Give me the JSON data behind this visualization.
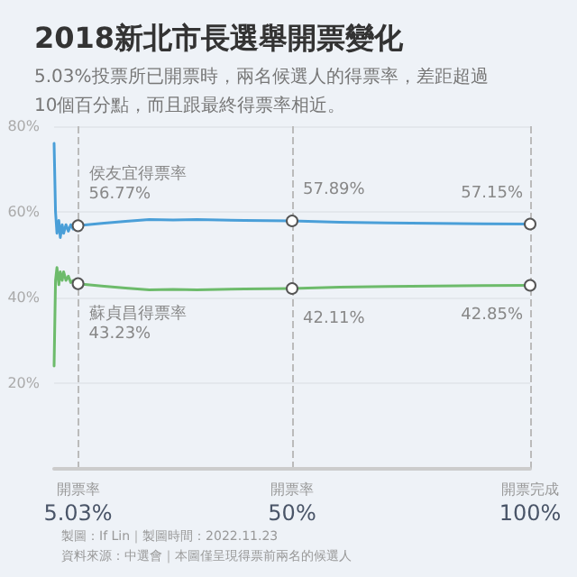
{
  "chart_data": {
    "type": "line",
    "title": "2018新北市長選舉開票變化",
    "subtitle": "5.03%投票所已開票時，兩名候選人的得票率，差距超過\n10個百分點，而且跟最終得票率相近。",
    "xlim": [
      0,
      100
    ],
    "xticks": [
      {
        "value": 5.03,
        "label": "5.03%"
      },
      {
        "value": 50,
        "label": "50%"
      },
      {
        "value": 100,
        "label": "100%"
      }
    ],
    "ylim": [
      0,
      80
    ],
    "yticks": [
      {
        "value": 20,
        "label": "20%"
      },
      {
        "value": 40,
        "label": "40%"
      },
      {
        "value": 60,
        "label": "60%"
      },
      {
        "value": 80,
        "label": "80%"
      }
    ],
    "grid": true,
    "line_style": "solid",
    "series": [
      {
        "name": "侯友宜得票率",
        "color": "#4a9fd8",
        "x": [
          0,
          0.3,
          0.6,
          1,
          1.3,
          1.7,
          2,
          2.5,
          3,
          3.5,
          4,
          5.03,
          7,
          10,
          15,
          20,
          25,
          30,
          40,
          50,
          60,
          70,
          80,
          90,
          100
        ],
        "values": [
          76,
          60,
          55,
          58,
          54,
          57,
          55,
          57,
          55.5,
          57,
          56,
          56.77,
          57,
          57.3,
          57.8,
          58.2,
          58.1,
          58.2,
          58,
          57.89,
          57.6,
          57.4,
          57.3,
          57.2,
          57.15
        ],
        "value_labels": [
          null,
          null,
          null,
          null,
          null,
          null,
          null,
          null,
          null,
          null,
          null,
          "56.77%",
          null,
          null,
          null,
          null,
          null,
          null,
          null,
          "57.89%",
          null,
          null,
          null,
          null,
          "57.15%"
        ]
      },
      {
        "name": "蘇貞昌得票率",
        "color": "#6dbb6b",
        "x": [
          0,
          0.3,
          0.6,
          1,
          1.3,
          1.7,
          2,
          2.5,
          3,
          3.5,
          4,
          5.03,
          7,
          10,
          15,
          20,
          25,
          30,
          40,
          50,
          60,
          70,
          80,
          90,
          100
        ],
        "values": [
          24,
          44,
          47,
          43,
          46,
          44,
          46,
          44,
          45,
          43.5,
          44,
          43.23,
          43,
          42.7,
          42.2,
          41.8,
          41.9,
          41.8,
          42,
          42.11,
          42.4,
          42.6,
          42.7,
          42.8,
          42.85
        ],
        "value_labels": [
          null,
          null,
          null,
          null,
          null,
          null,
          null,
          null,
          null,
          null,
          null,
          "43.23%",
          null,
          null,
          null,
          null,
          null,
          null,
          null,
          "42.11%",
          null,
          null,
          null,
          null,
          "42.85%"
        ]
      }
    ],
    "annotations": [
      "開票率",
      "開票率",
      "開票完成",
      "製圖：If Lin｜製圖時間：2022.11.23",
      "資料來源：中選會｜本圖僅呈現得票前兩名的候選人"
    ]
  }
}
